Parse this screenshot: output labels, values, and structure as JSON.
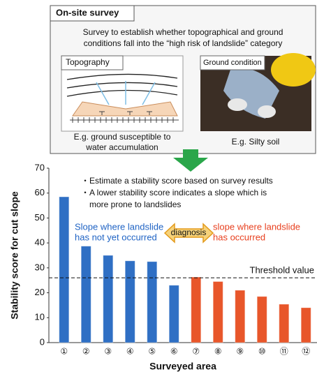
{
  "survey_panel": {
    "title": "On-site survey",
    "description": [
      "Survey to establish whether topographical and ground",
      "conditions fall into the “high risk of landslide” category"
    ],
    "topography": {
      "label": "Topography",
      "caption": [
        "E.g. ground susceptible to",
        "water accumulation"
      ]
    },
    "ground_condition": {
      "label": "Ground condition",
      "caption": [
        "E.g. Silty soil"
      ]
    }
  },
  "chart_data": {
    "type": "bar",
    "categories": [
      "①",
      "②",
      "③",
      "④",
      "⑤",
      "⑥",
      "⑦",
      "⑧",
      "⑨",
      "⑩",
      "⑪",
      "⑫"
    ],
    "values": [
      58.5,
      38.7,
      35,
      32.8,
      32.5,
      23,
      26.3,
      24.5,
      21,
      18.5,
      15.4,
      14
    ],
    "colors": [
      "#2f6fc4",
      "#2f6fc4",
      "#2f6fc4",
      "#2f6fc4",
      "#2f6fc4",
      "#2f6fc4",
      "#e8562a",
      "#e8562a",
      "#e8562a",
      "#e8562a",
      "#e8562a",
      "#e8562a"
    ],
    "ylim": [
      0,
      70
    ],
    "yticks": [
      0,
      10,
      20,
      30,
      40,
      50,
      60,
      70
    ],
    "y_label": "Stability score for cut slope",
    "x_label": "Surveyed area",
    "threshold": {
      "value": 26,
      "label": "Threshold value"
    },
    "notes": [
      "・Estimate a stability score based on survey results",
      "・A lower stability score indicates a slope which is",
      "more prone to landslides"
    ],
    "group_labels": [
      {
        "lines": [
          "Slope where landslide",
          "has not yet occurred"
        ],
        "color": "#1f63c4"
      },
      {
        "lines": [
          "slope where landslide",
          "has occurred"
        ],
        "color": "#e8401f"
      }
    ],
    "diagnosis_label": "diagnosis"
  }
}
